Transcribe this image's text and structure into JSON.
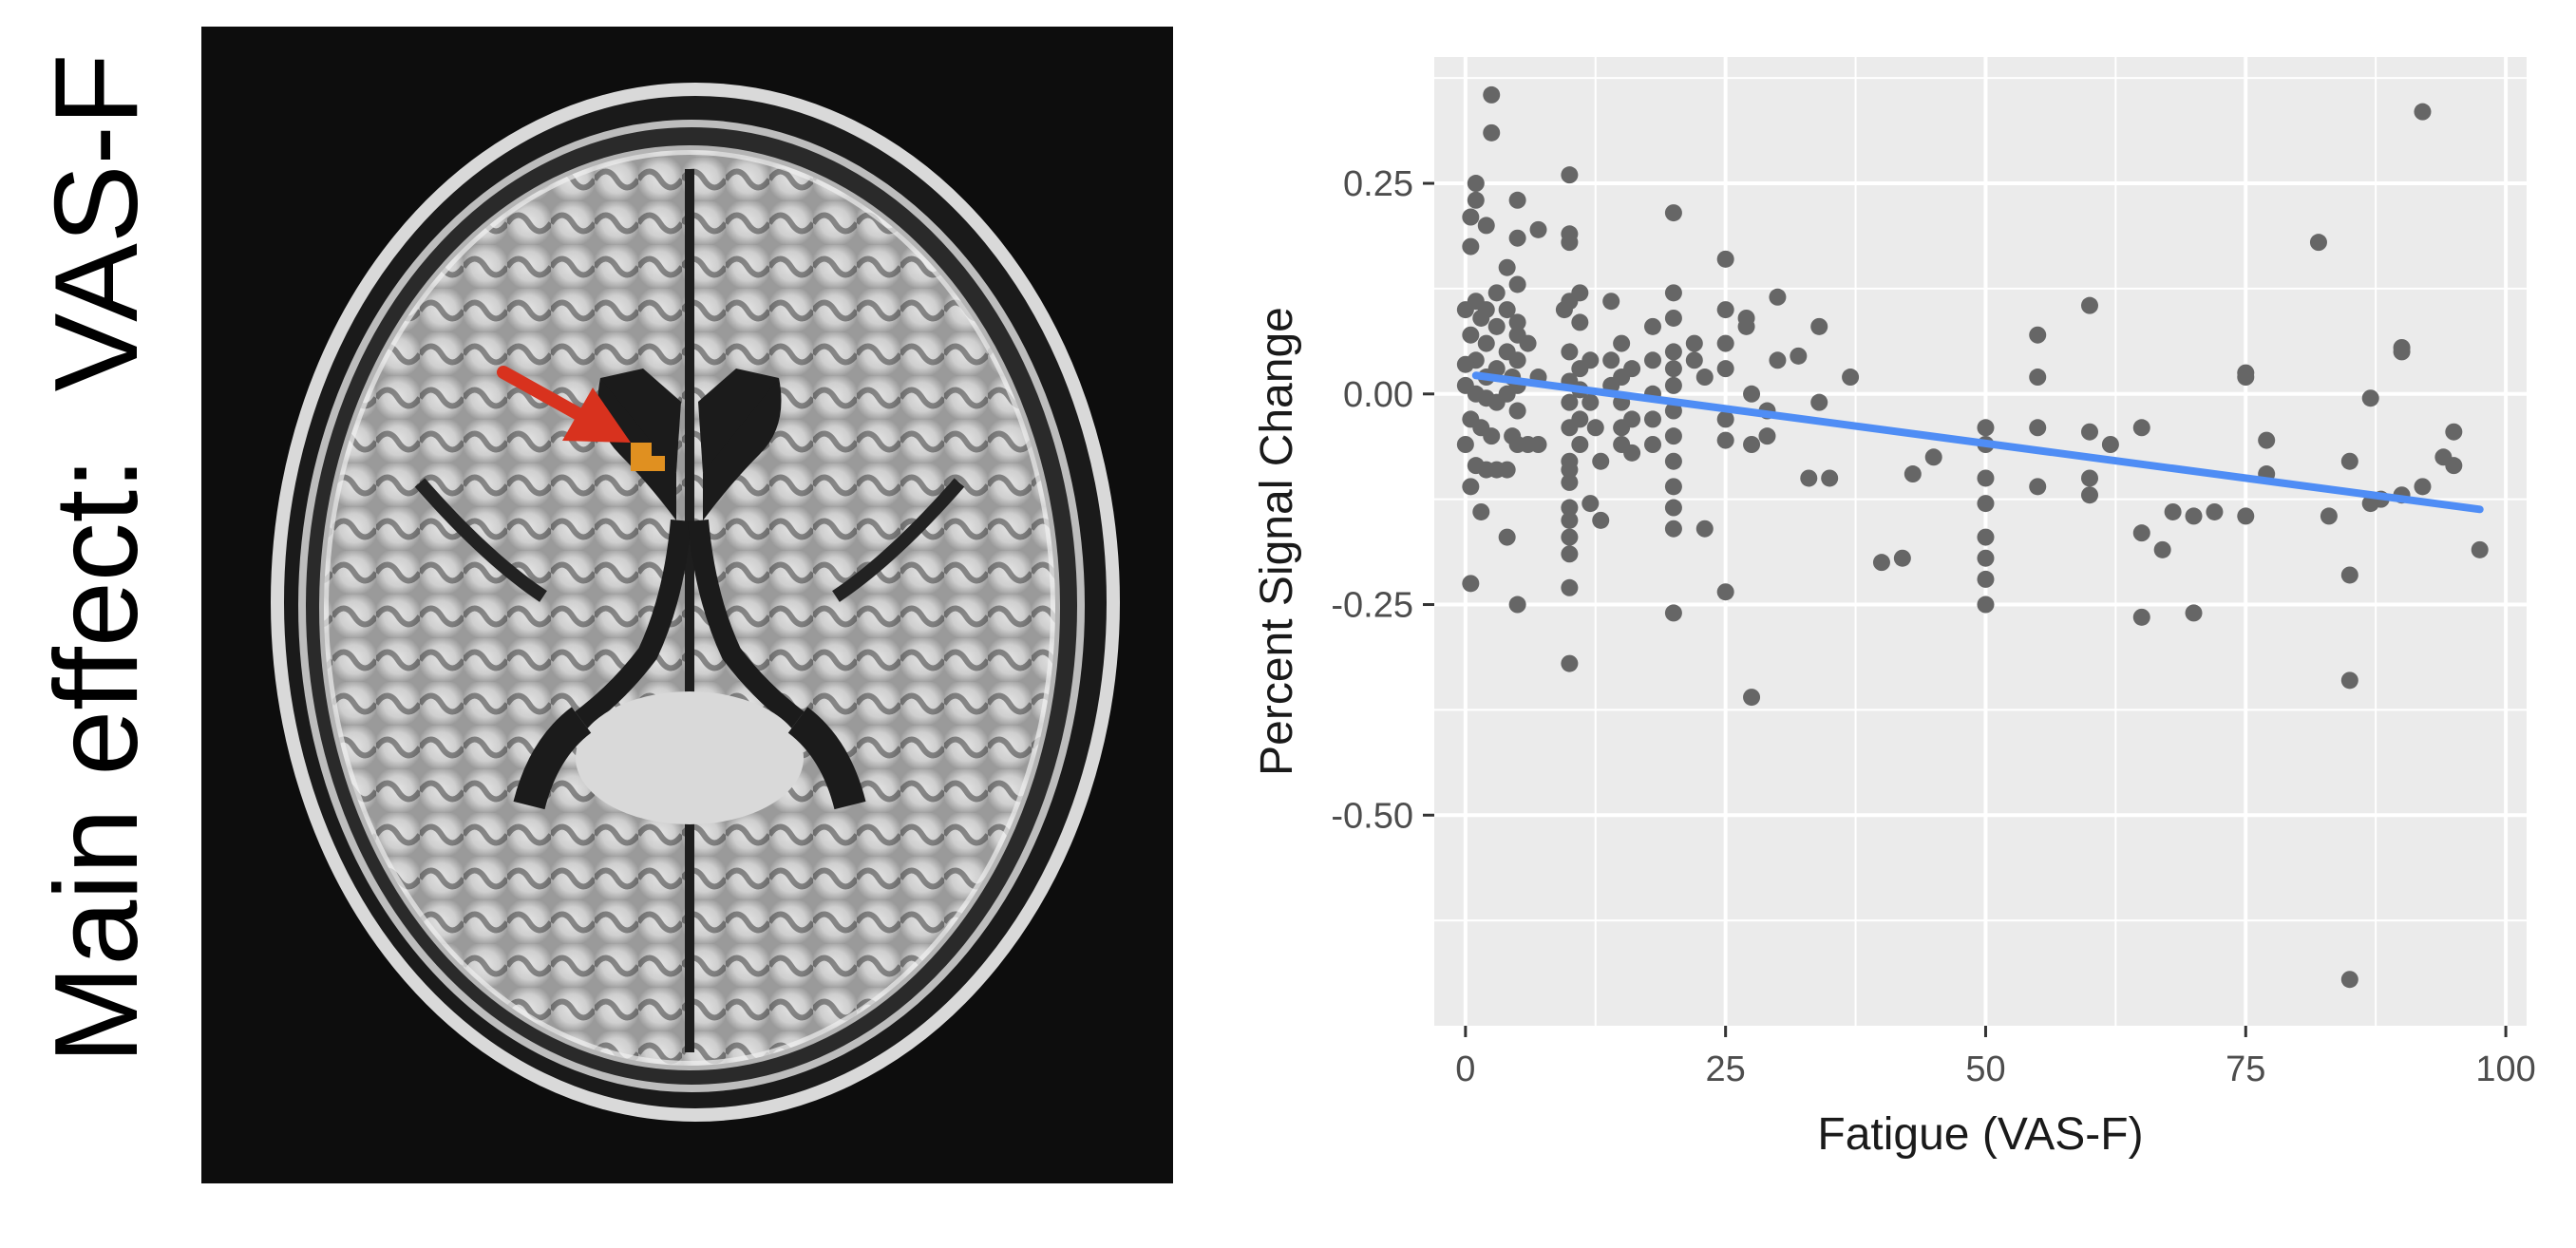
{
  "figure_label": "Main effect:  VAS-F",
  "colors": {
    "panel_bg": "#ebebeb",
    "grid": "#ffffff",
    "points": "#666666",
    "fit_line": "#4f8df5",
    "arrow": "#d8321e",
    "activation": "#e09020"
  },
  "chart_data": {
    "type": "scatter",
    "xlabel": "Fatigue (VAS-F)",
    "ylabel": "Percent Signal Change",
    "xlim": [
      -3,
      102
    ],
    "ylim": [
      -0.75,
      0.4
    ],
    "x_ticks": [
      0,
      25,
      50,
      75,
      100
    ],
    "x_tick_labels": [
      "0",
      "25",
      "50",
      "75",
      "100"
    ],
    "y_ticks": [
      0.25,
      0,
      -0.25,
      -0.5
    ],
    "y_tick_labels": [
      "0.25",
      "0.00",
      "-0.25",
      "-0.50"
    ],
    "grid": true,
    "legend": "none",
    "fit_line": {
      "x": [
        1,
        97.5
      ],
      "y": [
        0.022,
        -0.137
      ]
    },
    "points": [
      [
        2.5,
        0.355
      ],
      [
        2.5,
        0.31
      ],
      [
        1,
        0.25
      ],
      [
        1,
        0.23
      ],
      [
        0.5,
        0.21
      ],
      [
        2,
        0.2
      ],
      [
        0.5,
        0.175
      ],
      [
        3,
        0.12
      ],
      [
        1,
        0.11
      ],
      [
        0,
        0.1
      ],
      [
        2,
        0.1
      ],
      [
        1.5,
        0.09
      ],
      [
        3,
        0.08
      ],
      [
        0.5,
        0.07
      ],
      [
        2,
        0.06
      ],
      [
        1,
        0.04
      ],
      [
        0,
        0.035
      ],
      [
        3,
        0.03
      ],
      [
        2,
        0.02
      ],
      [
        0,
        0.01
      ],
      [
        1,
        0
      ],
      [
        2,
        -0.005
      ],
      [
        3,
        -0.01
      ],
      [
        0.5,
        -0.03
      ],
      [
        1.5,
        -0.04
      ],
      [
        2.5,
        -0.05
      ],
      [
        0,
        -0.06
      ],
      [
        1,
        -0.085
      ],
      [
        2,
        -0.09
      ],
      [
        3,
        -0.09
      ],
      [
        0.5,
        -0.11
      ],
      [
        1.5,
        -0.14
      ],
      [
        0.5,
        -0.225
      ],
      [
        5,
        0.23
      ],
      [
        5,
        0.185
      ],
      [
        4,
        0.15
      ],
      [
        5,
        0.13
      ],
      [
        4,
        0.1
      ],
      [
        5,
        0.085
      ],
      [
        5,
        0.07
      ],
      [
        4,
        0.05
      ],
      [
        5,
        0.04
      ],
      [
        4.5,
        0.02
      ],
      [
        5,
        0.01
      ],
      [
        4,
        0
      ],
      [
        5,
        -0.02
      ],
      [
        4.5,
        -0.05
      ],
      [
        5,
        -0.06
      ],
      [
        4,
        -0.09
      ],
      [
        4,
        -0.17
      ],
      [
        5,
        -0.25
      ],
      [
        7,
        0.195
      ],
      [
        6,
        0.06
      ],
      [
        7,
        0.02
      ],
      [
        7,
        -0.06
      ],
      [
        6,
        -0.06
      ],
      [
        10,
        0.26
      ],
      [
        10,
        0.19
      ],
      [
        10,
        0.18
      ],
      [
        11,
        0.12
      ],
      [
        10,
        0.11
      ],
      [
        9.5,
        0.1
      ],
      [
        11,
        0.085
      ],
      [
        10,
        0.05
      ],
      [
        11,
        0.03
      ],
      [
        10,
        0.015
      ],
      [
        11,
        0.005
      ],
      [
        10,
        -0.01
      ],
      [
        11,
        -0.03
      ],
      [
        10,
        -0.04
      ],
      [
        11,
        -0.06
      ],
      [
        10,
        -0.08
      ],
      [
        10,
        -0.09
      ],
      [
        10,
        -0.105
      ],
      [
        10,
        -0.135
      ],
      [
        10,
        -0.15
      ],
      [
        10,
        -0.17
      ],
      [
        10,
        -0.19
      ],
      [
        10,
        -0.23
      ],
      [
        10,
        -0.32
      ],
      [
        12,
        0.04
      ],
      [
        12,
        -0.01
      ],
      [
        12.5,
        -0.04
      ],
      [
        13,
        -0.08
      ],
      [
        12,
        -0.13
      ],
      [
        13,
        -0.15
      ],
      [
        14,
        0.11
      ],
      [
        14,
        0.04
      ],
      [
        14,
        0.01
      ],
      [
        15,
        0.06
      ],
      [
        15,
        0.02
      ],
      [
        15,
        -0.01
      ],
      [
        15,
        -0.04
      ],
      [
        15,
        -0.06
      ],
      [
        16,
        0.03
      ],
      [
        16,
        -0.03
      ],
      [
        16,
        -0.07
      ],
      [
        18,
        0.08
      ],
      [
        18,
        0.04
      ],
      [
        18,
        0
      ],
      [
        18,
        -0.03
      ],
      [
        18,
        -0.06
      ],
      [
        20,
        0.215
      ],
      [
        20,
        0.12
      ],
      [
        20,
        0.09
      ],
      [
        20,
        0.05
      ],
      [
        20,
        0.03
      ],
      [
        20,
        0.01
      ],
      [
        20,
        -0.02
      ],
      [
        20,
        -0.05
      ],
      [
        20,
        -0.08
      ],
      [
        20,
        -0.11
      ],
      [
        20,
        -0.135
      ],
      [
        20,
        -0.16
      ],
      [
        20,
        -0.26
      ],
      [
        22,
        0.06
      ],
      [
        22,
        0.04
      ],
      [
        23,
        0.02
      ],
      [
        23,
        -0.16
      ],
      [
        25,
        0.16
      ],
      [
        25,
        0.1
      ],
      [
        25,
        0.06
      ],
      [
        25,
        0.03
      ],
      [
        25,
        -0.03
      ],
      [
        25,
        -0.055
      ],
      [
        25,
        -0.235
      ],
      [
        27,
        0.09
      ],
      [
        27,
        0.08
      ],
      [
        27.5,
        0
      ],
      [
        27.5,
        -0.06
      ],
      [
        27.5,
        -0.36
      ],
      [
        29,
        -0.02
      ],
      [
        29,
        -0.05
      ],
      [
        30,
        0.115
      ],
      [
        30,
        0.04
      ],
      [
        32,
        0.045
      ],
      [
        33,
        -0.1
      ],
      [
        34,
        0.08
      ],
      [
        34,
        -0.01
      ],
      [
        35,
        -0.1
      ],
      [
        37,
        0.02
      ],
      [
        40,
        -0.2
      ],
      [
        42,
        -0.195
      ],
      [
        43,
        -0.095
      ],
      [
        45,
        -0.075
      ],
      [
        50,
        -0.04
      ],
      [
        50,
        -0.06
      ],
      [
        50,
        -0.1
      ],
      [
        50,
        -0.13
      ],
      [
        50,
        -0.17
      ],
      [
        50,
        -0.195
      ],
      [
        50,
        -0.22
      ],
      [
        50,
        -0.25
      ],
      [
        55,
        0.07
      ],
      [
        55,
        0.02
      ],
      [
        55,
        -0.04
      ],
      [
        55,
        -0.11
      ],
      [
        60,
        0.105
      ],
      [
        60,
        -0.045
      ],
      [
        60,
        -0.1
      ],
      [
        60,
        -0.12
      ],
      [
        62,
        -0.06
      ],
      [
        65,
        -0.04
      ],
      [
        65,
        -0.165
      ],
      [
        65,
        -0.265
      ],
      [
        67,
        -0.185
      ],
      [
        68,
        -0.14
      ],
      [
        70,
        -0.26
      ],
      [
        70,
        -0.145
      ],
      [
        72,
        -0.14
      ],
      [
        75,
        0.025
      ],
      [
        75,
        0.02
      ],
      [
        75,
        -0.145
      ],
      [
        77,
        -0.055
      ],
      [
        77,
        -0.095
      ],
      [
        82,
        0.18
      ],
      [
        83,
        -0.145
      ],
      [
        85,
        -0.08
      ],
      [
        85,
        -0.215
      ],
      [
        85,
        -0.34
      ],
      [
        85,
        -0.695
      ],
      [
        87,
        -0.005
      ],
      [
        87,
        -0.13
      ],
      [
        88,
        -0.125
      ],
      [
        90,
        0.055
      ],
      [
        90,
        0.05
      ],
      [
        90,
        -0.12
      ],
      [
        92,
        0.335
      ],
      [
        92,
        -0.11
      ],
      [
        94,
        -0.075
      ],
      [
        95,
        -0.045
      ],
      [
        95,
        -0.085
      ],
      [
        97.5,
        -0.185
      ]
    ]
  }
}
